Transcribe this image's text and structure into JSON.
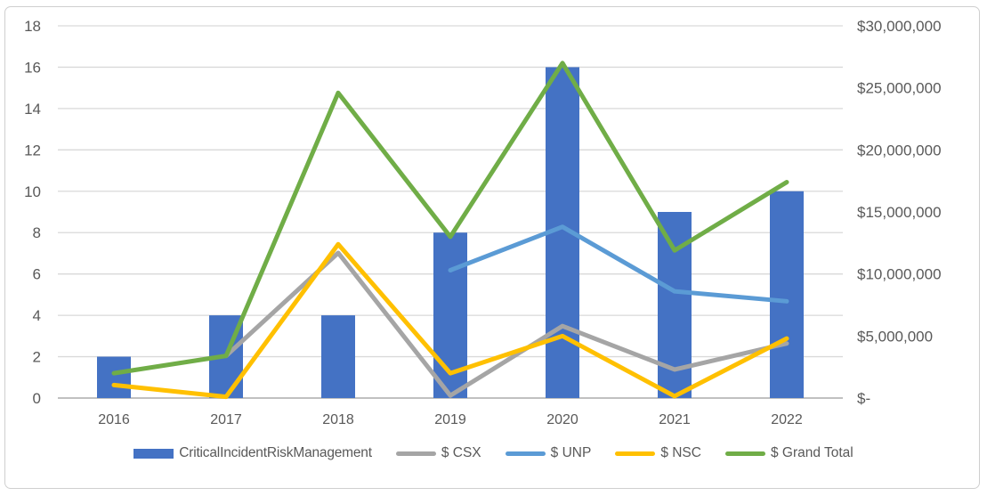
{
  "chart_data": {
    "type": "combo",
    "title": "",
    "categories": [
      "2016",
      "2017",
      "2018",
      "2019",
      "2020",
      "2021",
      "2022"
    ],
    "left_axis": {
      "min": 0,
      "max": 18,
      "tick_step": 2,
      "tick_labels": [
        "0",
        "2",
        "4",
        "6",
        "8",
        "10",
        "12",
        "14",
        "16",
        "18"
      ]
    },
    "right_axis": {
      "min": 0,
      "max": 30000000,
      "tick_step": 5000000,
      "tick_labels": [
        "$-",
        "$5,000,000",
        "$10,000,000",
        "$15,000,000",
        "$20,000,000",
        "$25,000,000",
        "$30,000,000"
      ]
    },
    "grid": true,
    "legend_position": "bottom",
    "bar_series": {
      "name": "Critical Incident Risk Management",
      "axis": "left",
      "color": "#4472C4",
      "values": [
        2,
        4,
        4,
        8,
        16,
        9,
        10
      ]
    },
    "line_series": [
      {
        "name": "$ CSX",
        "axis": "right",
        "color": "#A5A5A5",
        "values": [
          null,
          3400000,
          11700000,
          200000,
          5800000,
          2300000,
          4400000
        ]
      },
      {
        "name": "$ UNP",
        "axis": "right",
        "color": "#5B9BD5",
        "values": [
          null,
          null,
          null,
          10300000,
          13800000,
          8600000,
          7800000
        ]
      },
      {
        "name": "$ NSC",
        "axis": "right",
        "color": "#FFC000",
        "values": [
          1050000,
          100000,
          12400000,
          2000000,
          5000000,
          150000,
          4800000
        ]
      },
      {
        "name": "$ Grand Total",
        "axis": "right",
        "color": "#70AD47",
        "values": [
          2000000,
          3400000,
          24600000,
          13000000,
          27000000,
          11900000,
          17400000
        ]
      }
    ],
    "colors": {
      "gridline": "#D9D9D9",
      "axis_line": "#C0C0C0",
      "axis_text": "#595959",
      "legend_text": "#595959",
      "frame_border": "#CFCFCF",
      "background": "#FFFFFF"
    }
  }
}
